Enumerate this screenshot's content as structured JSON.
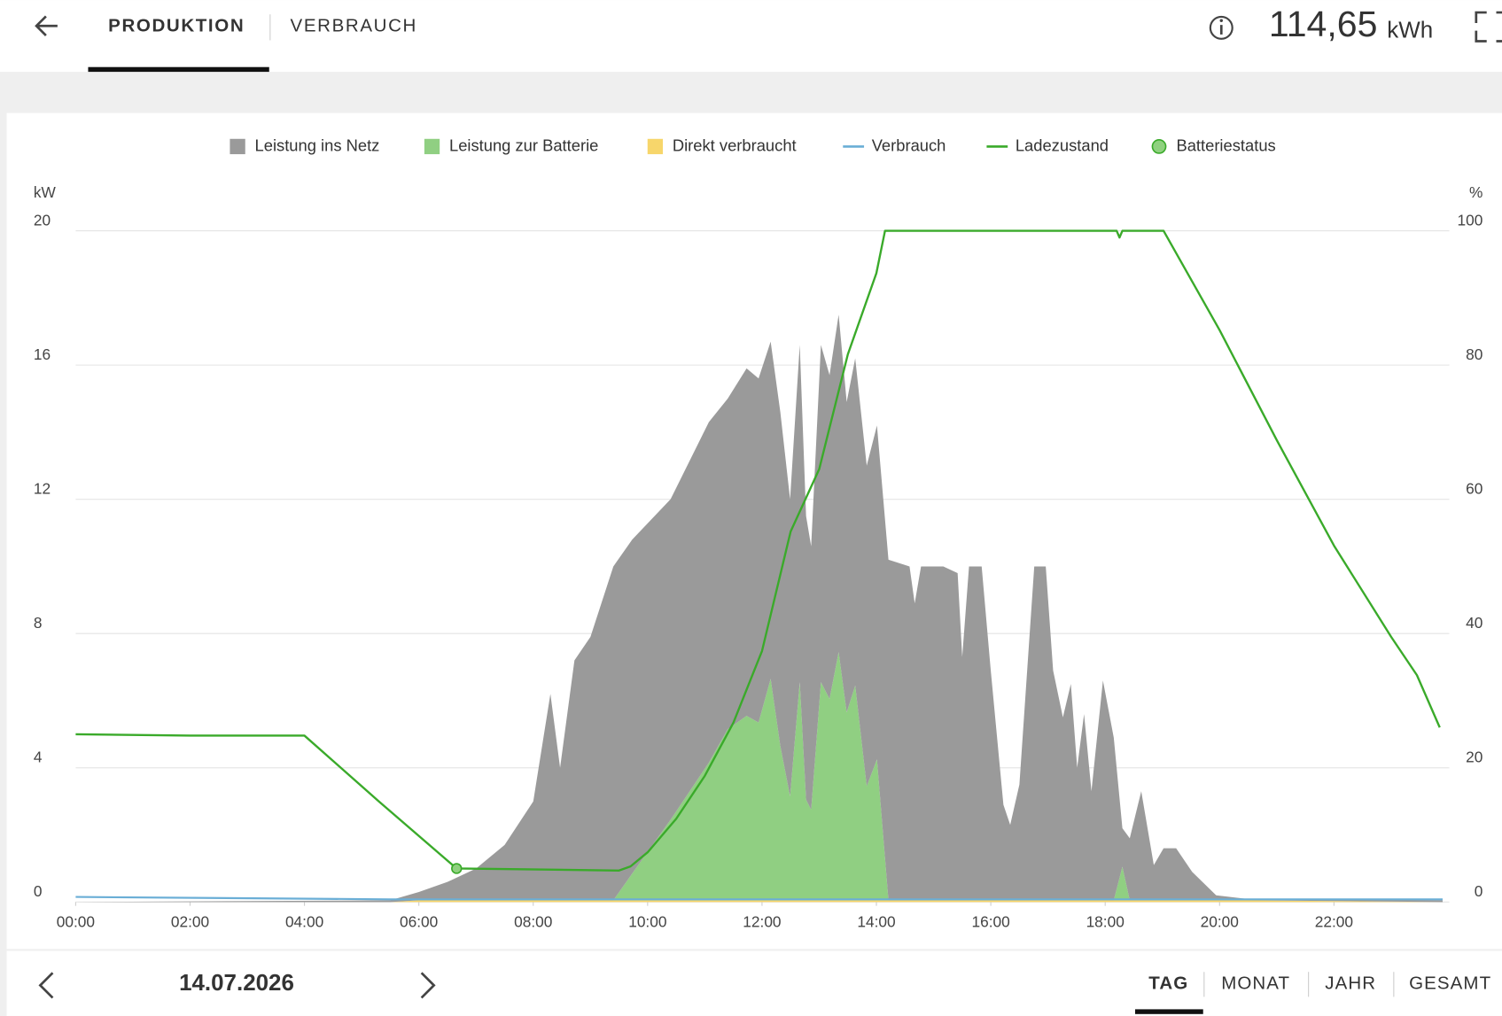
{
  "header": {
    "tabs": [
      "PRODUKTION",
      "VERBRAUCH"
    ],
    "total": "114,65",
    "unit": "kWh"
  },
  "chart_data": {
    "type": "area",
    "y_label": "kW",
    "y2_label": "%",
    "xlim": [
      0,
      24
    ],
    "xticks": [
      {
        "value": 0,
        "label": "00:00"
      },
      {
        "value": 2,
        "label": "02:00"
      },
      {
        "value": 4,
        "label": "04:00"
      },
      {
        "value": 6,
        "label": "06:00"
      },
      {
        "value": 8,
        "label": "08:00"
      },
      {
        "value": 10,
        "label": "10:00"
      },
      {
        "value": 12,
        "label": "12:00"
      },
      {
        "value": 14,
        "label": "14:00"
      },
      {
        "value": 16,
        "label": "16:00"
      },
      {
        "value": 18,
        "label": "18:00"
      },
      {
        "value": 20,
        "label": "20:00"
      },
      {
        "value": 22,
        "label": "22:00"
      }
    ],
    "ylim": [
      0,
      20
    ],
    "yticks": [
      0,
      4,
      8,
      12,
      16,
      20
    ],
    "y2lim": [
      0,
      100
    ],
    "y2ticks": [
      0,
      20,
      40,
      60,
      80,
      100
    ],
    "grid": true,
    "stacked": true,
    "x": [
      0,
      5.5,
      6,
      6.5,
      7,
      7.5,
      8,
      8.3,
      8.47,
      8.72,
      9,
      9.4,
      9.73,
      10.4,
      11.07,
      11.4,
      11.73,
      11.94,
      12.15,
      12.32,
      12.49,
      12.66,
      12.77,
      12.86,
      13.03,
      13.18,
      13.34,
      13.48,
      13.63,
      13.83,
      14.01,
      14.21,
      14.58,
      14.67,
      14.78,
      15.17,
      15.42,
      15.5,
      15.62,
      15.84,
      16,
      16.22,
      16.34,
      16.5,
      16.76,
      16.96,
      17.09,
      17.26,
      17.4,
      17.51,
      17.63,
      17.76,
      17.96,
      18.15,
      18.3,
      18.43,
      18.63,
      18.85,
      19.02,
      19.24,
      19.52,
      19.94,
      20.44,
      23.9
    ],
    "series": [
      {
        "name": "Leistung ins Netz",
        "type": "area",
        "color": "#9a9a9a",
        "values": [
          0,
          0.05,
          0.25,
          0.55,
          0.95,
          1.65,
          2.95,
          6.15,
          3.95,
          7.15,
          7.85,
          9.95,
          9.95,
          9.55,
          10.15,
          9.85,
          10.35,
          10.25,
          10.05,
          9.95,
          8.85,
          10.05,
          8.45,
          7.85,
          10.05,
          9.65,
          10.05,
          9.25,
          9.75,
          9.55,
          9.95,
          10.15,
          9.95,
          8.85,
          9.95,
          9.95,
          9.75,
          7.25,
          9.95,
          9.95,
          6.85,
          2.85,
          2.25,
          3.45,
          9.95,
          9.95,
          6.85,
          5.45,
          6.45,
          3.95,
          5.55,
          3.25,
          6.55,
          4.85,
          1.15,
          1.85,
          3.25,
          1.05,
          1.55,
          1.55,
          0.85,
          0.15,
          0.05,
          0.05
        ]
      },
      {
        "name": "Leistung zur Batterie",
        "type": "area",
        "color": "#90cf82",
        "values": [
          0,
          0,
          0,
          0,
          0,
          0,
          0,
          0,
          0,
          0,
          0,
          0,
          0.8,
          2.4,
          4.1,
          5.1,
          5.5,
          5.3,
          6.6,
          4.6,
          3.1,
          6.5,
          3.0,
          2.7,
          6.5,
          6.0,
          7.4,
          5.6,
          6.4,
          3.4,
          4.2,
          0,
          0,
          0,
          0,
          0,
          0,
          0,
          0,
          0,
          0,
          0,
          0,
          0,
          0,
          0,
          0,
          0,
          0,
          0,
          0,
          0,
          0,
          0,
          1.0,
          0,
          0,
          0,
          0,
          0,
          0,
          0,
          0,
          0
        ]
      },
      {
        "name": "Direkt verbraucht",
        "type": "area",
        "color": "#f7d66b",
        "values": [
          0,
          0,
          0.05,
          0.05,
          0.05,
          0.05,
          0.05,
          0.05,
          0.05,
          0.05,
          0.05,
          0.05,
          0.05,
          0.05,
          0.05,
          0.05,
          0.05,
          0.05,
          0.05,
          0.05,
          0.05,
          0.05,
          0.05,
          0.05,
          0.05,
          0.05,
          0.05,
          0.05,
          0.05,
          0.05,
          0.05,
          0.05,
          0.05,
          0.05,
          0.05,
          0.05,
          0.05,
          0.05,
          0.05,
          0.05,
          0.05,
          0.05,
          0.05,
          0.05,
          0.05,
          0.05,
          0.05,
          0.05,
          0.05,
          0.05,
          0.05,
          0.05,
          0.05,
          0.05,
          0.05,
          0.05,
          0.05,
          0.05,
          0.05,
          0.05,
          0.05,
          0.05,
          0.05,
          0
        ]
      },
      {
        "name": "Verbrauch",
        "type": "line",
        "color": "#6aaed6",
        "values": [
          0.15,
          0.08,
          0.08,
          0.08,
          0.08,
          0.08,
          0.08,
          0.08,
          0.08,
          0.08,
          0.08,
          0.08,
          0.08,
          0.08,
          0.08,
          0.08,
          0.08,
          0.08,
          0.08,
          0.08,
          0.08,
          0.08,
          0.08,
          0.08,
          0.08,
          0.08,
          0.08,
          0.08,
          0.08,
          0.08,
          0.08,
          0.08,
          0.08,
          0.08,
          0.08,
          0.08,
          0.08,
          0.08,
          0.08,
          0.08,
          0.08,
          0.08,
          0.08,
          0.08,
          0.08,
          0.08,
          0.08,
          0.08,
          0.08,
          0.08,
          0.08,
          0.08,
          0.08,
          0.08,
          0.08,
          0.08,
          0.08,
          0.08,
          0.08,
          0.08,
          0.08,
          0.08,
          0.08,
          0.08
        ]
      },
      {
        "name": "Ladezustand",
        "type": "line",
        "axis": "y2",
        "color": "#3aaa2a",
        "x": [
          0,
          2,
          4,
          5.3,
          6.66,
          9.5,
          9.7,
          10,
          10.5,
          11,
          11.5,
          12,
          12.5,
          13,
          13.5,
          14,
          14.15,
          18.2,
          18.25,
          18.3,
          19.02,
          20,
          21,
          22,
          23,
          23.45,
          23.85
        ],
        "values": [
          25,
          24.8,
          24.8,
          15,
          5,
          4.7,
          5.3,
          7.4,
          12.4,
          18.8,
          26.7,
          37.4,
          55.2,
          64.5,
          81.6,
          93.7,
          100,
          100,
          99,
          100,
          100,
          85.2,
          68.8,
          53.1,
          39.5,
          33.8,
          26
        ]
      },
      {
        "name": "Batteriestatus",
        "type": "point",
        "axis": "y2",
        "color": "#8fd17f",
        "edge_color": "#3aaa2a",
        "x": [
          6.66
        ],
        "values": [
          5
        ]
      }
    ]
  },
  "footer": {
    "date": "14.07.2026",
    "periods": [
      "TAG",
      "MONAT",
      "JAHR",
      "GESAMT"
    ]
  }
}
